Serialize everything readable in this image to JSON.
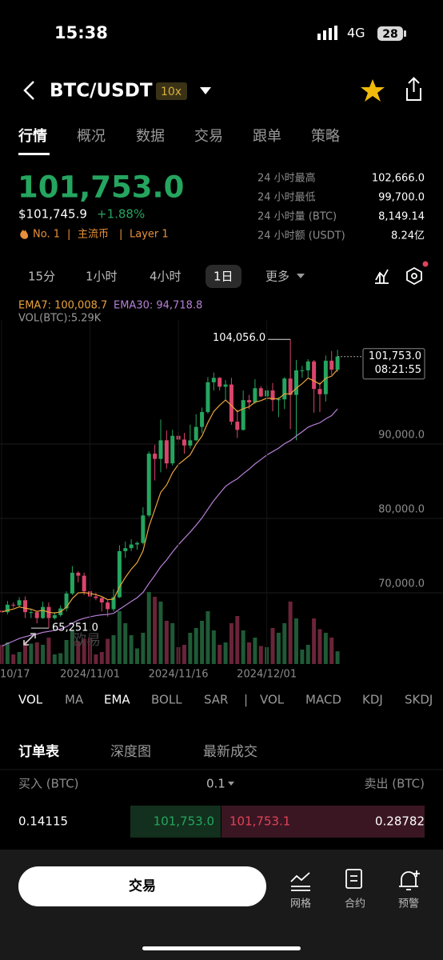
{
  "status_bar": {
    "time": "15:38",
    "network": "4G",
    "battery": "28"
  },
  "header": {
    "pair": "BTC/USDT",
    "leverage": "10x"
  },
  "tabs": [
    "行情",
    "概况",
    "数据",
    "交易",
    "跟单",
    "策略"
  ],
  "ticker": {
    "price": "101,753.0",
    "usd_price": "$101,745.9",
    "change": "+1.88%",
    "tags": [
      "No. 1",
      "|",
      "主流币",
      "|",
      "Layer 1"
    ]
  },
  "stats": [
    {
      "label": "24 小时最高",
      "value": "102,666.0"
    },
    {
      "label": "24 小时最低",
      "value": "99,700.0"
    },
    {
      "label": "24 小时量 (BTC)",
      "value": "8,149.14"
    },
    {
      "label": "24 小时额 (USDT)",
      "value": "8.24亿"
    }
  ],
  "periods": [
    "15分",
    "1小时",
    "4小时",
    "1日",
    "更多"
  ],
  "chart_data": {
    "type": "candlestick",
    "readouts": [
      "EMA7: 100,008.7",
      "EMA30: 94,718.8",
      "VOL(BTC):5.29K"
    ],
    "categories": [
      "10/17",
      null,
      null,
      null,
      null,
      null,
      null,
      null,
      null,
      null,
      null,
      null,
      null,
      null,
      null,
      "2024/11/01",
      null,
      null,
      null,
      null,
      null,
      null,
      null,
      null,
      null,
      null,
      null,
      null,
      null,
      null,
      "2024/11/16",
      null,
      null,
      null,
      null,
      null,
      null,
      null,
      null,
      null,
      null,
      null,
      null,
      null,
      null,
      "2024/12/01",
      null,
      null,
      null,
      null,
      null,
      null,
      null,
      null,
      null,
      null,
      null,
      null
    ],
    "open": [
      67600,
      67400,
      68400,
      68300,
      69000,
      67400,
      67400,
      66600,
      68100,
      66600,
      67000,
      67900,
      69900,
      72700,
      72300,
      70200,
      69500,
      69300,
      68700,
      67800,
      69400,
      75600,
      76000,
      76500,
      76700,
      80400,
      88700,
      88000,
      90500,
      87400,
      91100,
      90600,
      89800,
      90500,
      92300,
      94300,
      98300,
      98900,
      97700,
      98000,
      93000,
      91900,
      95900,
      95600,
      97500,
      96400,
      97200,
      95900,
      96000,
      98800,
      96600,
      99900,
      99900,
      101100,
      97400,
      96700,
      101200,
      100000
    ],
    "high": [
      68000,
      68900,
      68700,
      69400,
      69500,
      67800,
      67500,
      68800,
      68700,
      67400,
      68300,
      70200,
      73600,
      72900,
      72700,
      71600,
      70000,
      69400,
      69000,
      70500,
      76400,
      76900,
      77200,
      76900,
      81500,
      89000,
      89900,
      93300,
      91800,
      91900,
      91700,
      91500,
      92600,
      94000,
      94900,
      99000,
      99600,
      99000,
      98600,
      98900,
      94600,
      97200,
      96600,
      98700,
      97800,
      97900,
      98200,
      96300,
      99000,
      104056,
      101300,
      100500,
      101400,
      101300,
      98300,
      101900,
      102500,
      102666
    ],
    "low": [
      66800,
      67100,
      68000,
      68100,
      66600,
      66600,
      65900,
      66500,
      65251,
      66400,
      66800,
      67500,
      69700,
      71400,
      69700,
      68800,
      69000,
      67500,
      66800,
      67500,
      69300,
      74700,
      75600,
      75800,
      76500,
      80200,
      85100,
      86200,
      86700,
      87100,
      90100,
      88700,
      89400,
      90400,
      91500,
      94100,
      97200,
      97200,
      95800,
      92600,
      90800,
      91800,
      94700,
      95400,
      96300,
      95700,
      94400,
      93600,
      94700,
      92000,
      90500,
      98900,
      98900,
      94200,
      94300,
      95700,
      99300,
      99700
    ],
    "close": [
      67400,
      68400,
      68300,
      69000,
      67400,
      67400,
      66600,
      68100,
      66600,
      67000,
      67900,
      69900,
      72700,
      72300,
      70200,
      69500,
      69300,
      68700,
      67800,
      69400,
      75600,
      76000,
      76500,
      76700,
      80400,
      88700,
      88000,
      90500,
      87400,
      91100,
      90600,
      89800,
      90500,
      92300,
      94300,
      98300,
      98900,
      97700,
      98000,
      93000,
      91900,
      95900,
      95600,
      97500,
      96400,
      97200,
      95900,
      96000,
      98800,
      96600,
      99900,
      99900,
      101100,
      97400,
      96700,
      101200,
      100000,
      101753
    ],
    "volume": [
      8000,
      9000,
      4000,
      5000,
      9500,
      8500,
      9000,
      8000,
      11000,
      4000,
      4500,
      10000,
      14000,
      9500,
      10500,
      11000,
      4000,
      5000,
      10500,
      12000,
      22000,
      17000,
      12000,
      6500,
      13000,
      30000,
      28000,
      26000,
      18000,
      17000,
      7000,
      8000,
      13000,
      15000,
      18000,
      22000,
      14000,
      8000,
      9000,
      17000,
      20000,
      14000,
      9000,
      11000,
      7500,
      7000,
      15000,
      13000,
      17000,
      26000,
      19000,
      6000,
      8000,
      19000,
      14500,
      13000,
      11000,
      5290
    ],
    "series": [
      {
        "color": "#e8a33d",
        "values": [
          67400,
          67650,
          67813,
          68110,
          67932,
          67799,
          67499,
          67649,
          67387,
          67290,
          67443,
          68057,
          69218,
          69989,
          70042,
          69906,
          69755,
          69491,
          69068,
          69151,
          70763,
          72072,
          73179,
          74059,
          75644,
          78908,
          81181,
          83511,
          84483,
          86137,
          87253,
          87890,
          88543,
          89982,
          91062,
          92871,
          94378,
          95209,
          95907,
          95180,
          94360,
          94745,
          95009,
          95632,
          95824,
          96168,
          96101,
          96076,
          96757,
          96718,
          97513,
          98110,
          98858,
          98493,
          98045,
          98834,
          99125,
          100008.7
        ]
      },
      {
        "color": "#b77fd6",
        "values": [
          62816,
          63176,
          63507,
          63861,
          64089,
          64303,
          64451,
          64686,
          64809,
          64950,
          65140,
          65447,
          65915,
          66327,
          66577,
          66766,
          66929,
          67043,
          67092,
          67241,
          67780,
          68310,
          68838,
          69345,
          70058,
          71260,
          72340,
          73511,
          74407,
          75484,
          76459,
          77319,
          78169,
          79081,
          80063,
          81239,
          82378,
          83366,
          84310,
          84871,
          85324,
          86006,
          86625,
          87326,
          87911,
          88510,
          88987,
          89439,
          90043,
          90466,
          91074,
          91643,
          92253,
          92585,
          92850,
          93389,
          93815,
          94718.8
        ]
      }
    ],
    "up_color": "#25a55f",
    "down_color": "#d9456a",
    "ylim": [
      60430,
      106670
    ],
    "yticks": [
      {
        "value": 70000,
        "label": "70,000.0"
      },
      {
        "value": 80000,
        "label": "80,000.0"
      },
      {
        "value": 90000,
        "label": "90,000.0"
      }
    ],
    "grid": true,
    "annotations": [
      {
        "value": 104056,
        "label": "104,056.0"
      },
      {
        "value": 65251,
        "label": "65,251.0"
      }
    ],
    "last_price": {
      "value": 101753,
      "label": "101,753.0",
      "countdown": "08:21:55"
    },
    "watermark": "欧易"
  },
  "indicator_tabs": [
    "VOL",
    "MA",
    "EMA",
    "BOLL",
    "SAR",
    "|",
    "VOL",
    "MACD",
    "KDJ",
    "SKDJ"
  ],
  "order_book": {
    "tabs": [
      "订单表",
      "深度图",
      "最新成交"
    ],
    "buy_label": "买入 (BTC)",
    "step": "0.1",
    "sell_label": "卖出 (BTC)",
    "rows": [
      {
        "bid_size": "0.14115",
        "bid": "101,753.0",
        "ask": "101,753.1",
        "ask_size": "0.28782"
      }
    ]
  },
  "bottom_bar": {
    "button": "交易",
    "actions": [
      "网格",
      "合约",
      "预警"
    ]
  }
}
